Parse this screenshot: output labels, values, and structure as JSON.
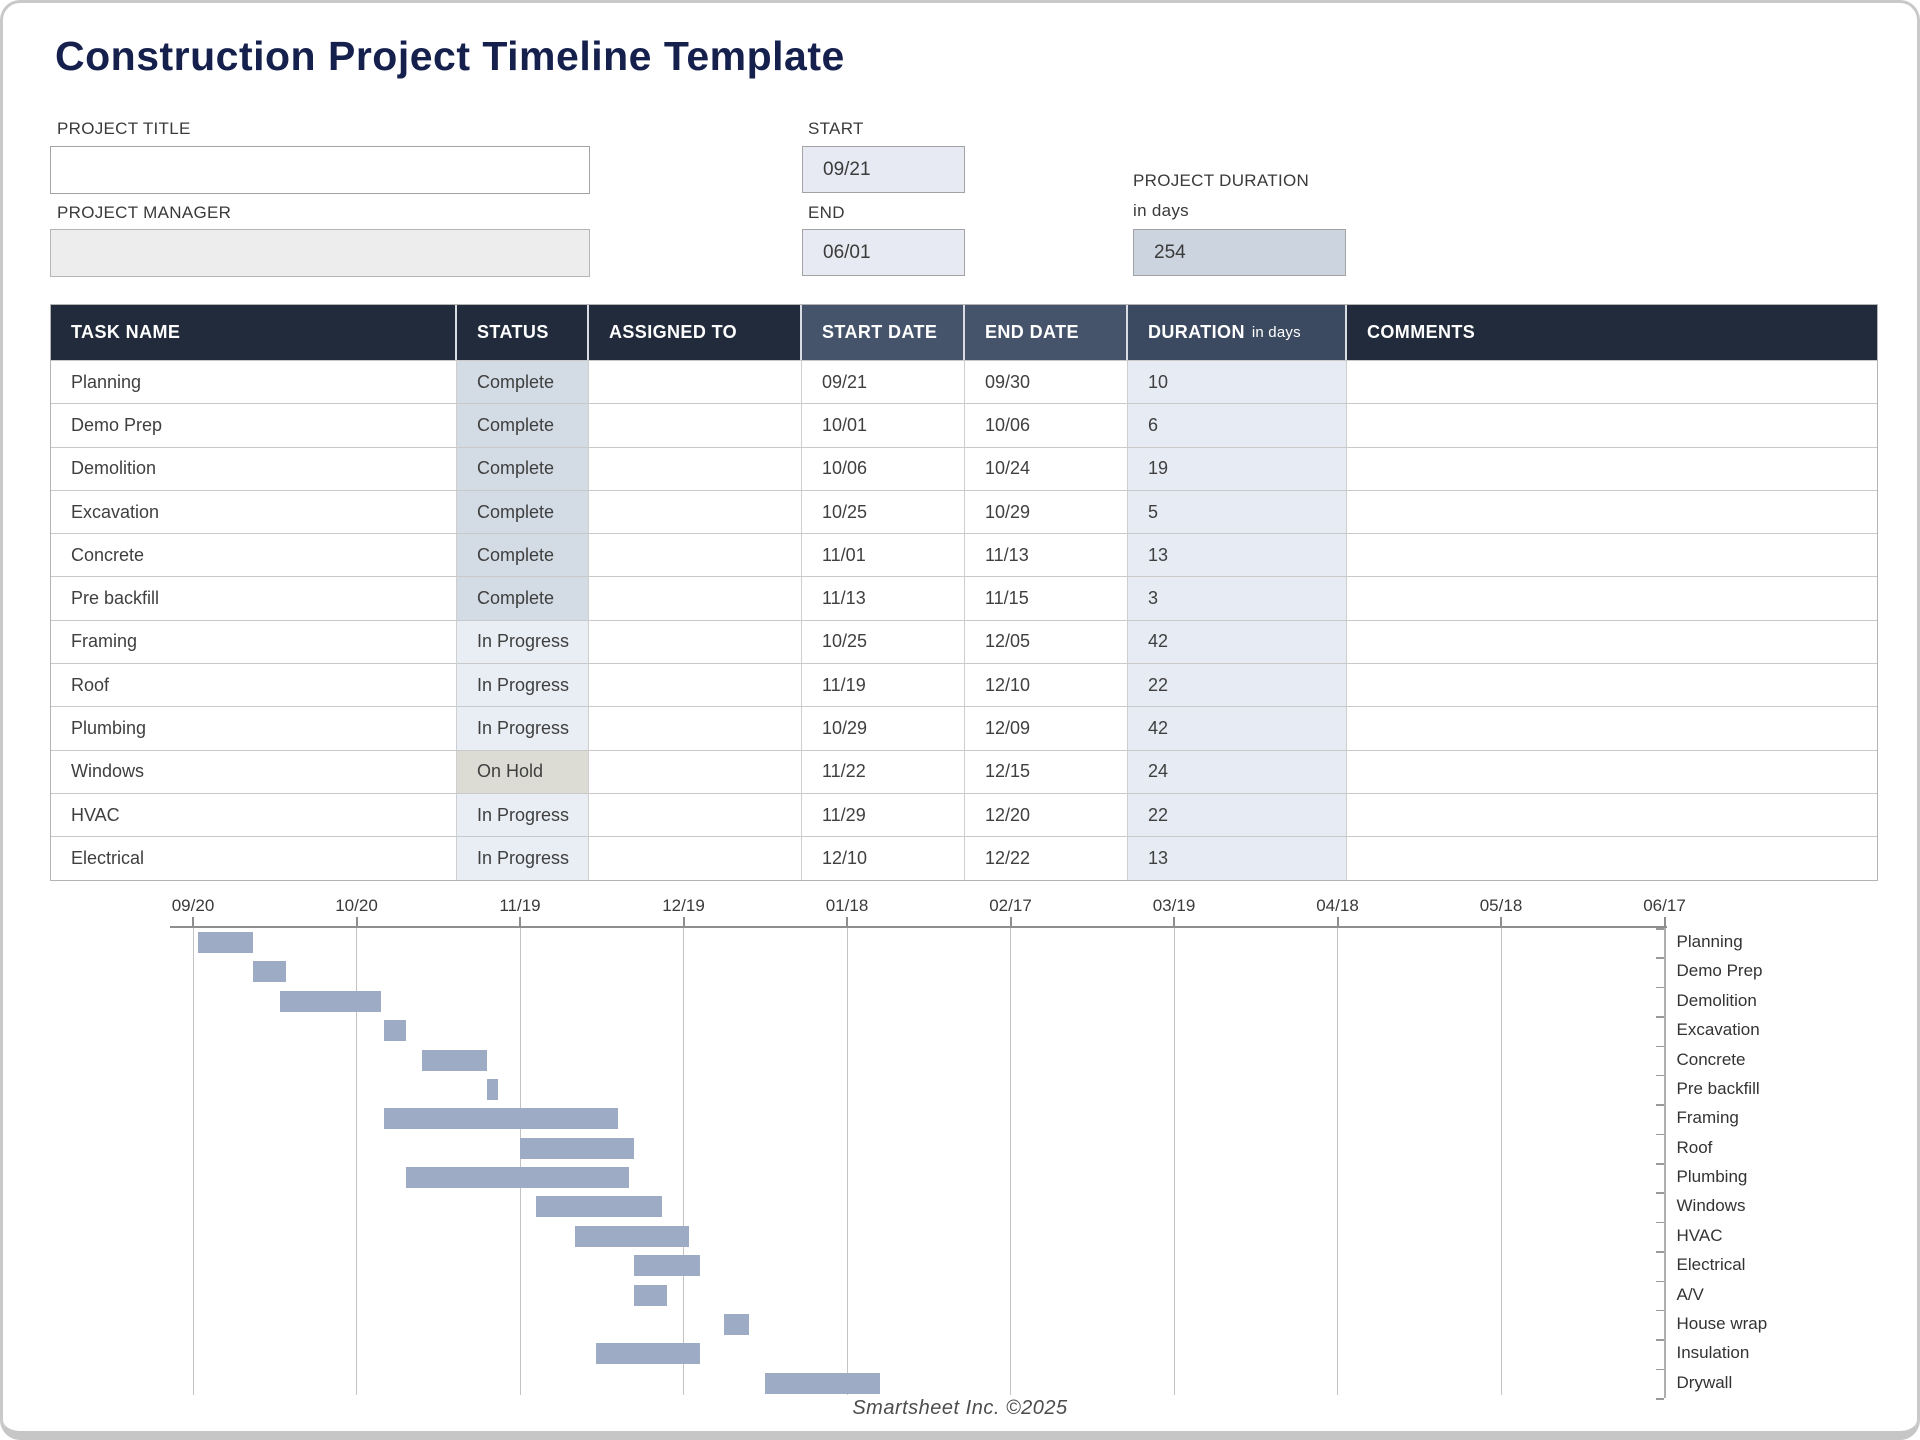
{
  "page": {
    "title": "Construction Project Timeline Template",
    "footer": "Smartsheet Inc. ©2025"
  },
  "form": {
    "project_title_label": "PROJECT TITLE",
    "project_title_value": "",
    "project_manager_label": "PROJECT MANAGER",
    "project_manager_value": "",
    "start_label": "START",
    "start_value": "09/21",
    "end_label": "END",
    "end_value": "06/01",
    "project_duration_label": "PROJECT DURATION",
    "project_duration_sublabel": "in days",
    "project_duration_value": "254"
  },
  "table": {
    "headers": {
      "task": "TASK NAME",
      "status": "STATUS",
      "assigned": "ASSIGNED TO",
      "start": "START DATE",
      "end": "END DATE",
      "duration_main": "DURATION",
      "duration_sub": "in days",
      "comments": "COMMENTS"
    },
    "rows": [
      {
        "task": "Planning",
        "status": "Complete",
        "assigned": "",
        "start": "09/21",
        "end": "09/30",
        "duration": "10",
        "comments": ""
      },
      {
        "task": "Demo Prep",
        "status": "Complete",
        "assigned": "",
        "start": "10/01",
        "end": "10/06",
        "duration": "6",
        "comments": ""
      },
      {
        "task": "Demolition",
        "status": "Complete",
        "assigned": "",
        "start": "10/06",
        "end": "10/24",
        "duration": "19",
        "comments": ""
      },
      {
        "task": "Excavation",
        "status": "Complete",
        "assigned": "",
        "start": "10/25",
        "end": "10/29",
        "duration": "5",
        "comments": ""
      },
      {
        "task": "Concrete",
        "status": "Complete",
        "assigned": "",
        "start": "11/01",
        "end": "11/13",
        "duration": "13",
        "comments": ""
      },
      {
        "task": "Pre backfill",
        "status": "Complete",
        "assigned": "",
        "start": "11/13",
        "end": "11/15",
        "duration": "3",
        "comments": ""
      },
      {
        "task": "Framing",
        "status": "In Progress",
        "assigned": "",
        "start": "10/25",
        "end": "12/05",
        "duration": "42",
        "comments": ""
      },
      {
        "task": "Roof",
        "status": "In Progress",
        "assigned": "",
        "start": "11/19",
        "end": "12/10",
        "duration": "22",
        "comments": ""
      },
      {
        "task": "Plumbing",
        "status": "In Progress",
        "assigned": "",
        "start": "10/29",
        "end": "12/09",
        "duration": "42",
        "comments": ""
      },
      {
        "task": "Windows",
        "status": "On Hold",
        "assigned": "",
        "start": "11/22",
        "end": "12/15",
        "duration": "24",
        "comments": ""
      },
      {
        "task": "HVAC",
        "status": "In Progress",
        "assigned": "",
        "start": "11/29",
        "end": "12/20",
        "duration": "22",
        "comments": ""
      },
      {
        "task": "Electrical",
        "status": "In Progress",
        "assigned": "",
        "start": "12/10",
        "end": "12/22",
        "duration": "13",
        "comments": ""
      }
    ]
  },
  "chart_data": {
    "type": "gantt-bar",
    "x_axis": {
      "tick_labels": [
        "09/20",
        "10/20",
        "11/19",
        "12/19",
        "01/18",
        "02/17",
        "03/19",
        "04/18",
        "05/18",
        "06/17"
      ],
      "days_per_tick": 30,
      "day_range": [
        0,
        270
      ]
    },
    "tasks": [
      {
        "name": "Planning",
        "bar_start_day": 1,
        "bar_end_day": 11
      },
      {
        "name": "Demo Prep",
        "bar_start_day": 11,
        "bar_end_day": 17
      },
      {
        "name": "Demolition",
        "bar_start_day": 16,
        "bar_end_day": 34.5
      },
      {
        "name": "Excavation",
        "bar_start_day": 35,
        "bar_end_day": 39
      },
      {
        "name": "Concrete",
        "bar_start_day": 42,
        "bar_end_day": 54
      },
      {
        "name": "Pre backfill",
        "bar_start_day": 54,
        "bar_end_day": 56
      },
      {
        "name": "Framing",
        "bar_start_day": 35,
        "bar_end_day": 78
      },
      {
        "name": "Roof",
        "bar_start_day": 60,
        "bar_end_day": 81
      },
      {
        "name": "Plumbing",
        "bar_start_day": 39,
        "bar_end_day": 80
      },
      {
        "name": "Windows",
        "bar_start_day": 63,
        "bar_end_day": 86
      },
      {
        "name": "HVAC",
        "bar_start_day": 70,
        "bar_end_day": 91
      },
      {
        "name": "Electrical",
        "bar_start_day": 81,
        "bar_end_day": 93
      },
      {
        "name": "A/V",
        "bar_start_day": 81,
        "bar_end_day": 87
      },
      {
        "name": "House wrap",
        "bar_start_day": 97.5,
        "bar_end_day": 102
      },
      {
        "name": "Insulation",
        "bar_start_day": 74,
        "bar_end_day": 93
      },
      {
        "name": "Drywall",
        "bar_start_day": 105,
        "bar_end_day": 126
      }
    ]
  },
  "colors": {
    "title_text": "#15204c",
    "header_dark": "#212b3b",
    "header_slate": "#45536b",
    "header_duration": "#3c4a61",
    "status_colors": {
      "Complete": "#d3dbe4",
      "In Progress": "#e9edf4",
      "On Hold": "#dcdcd4"
    },
    "duration_column_bg": "#e7ebf3",
    "gantt_bar": "#9dacc4"
  }
}
